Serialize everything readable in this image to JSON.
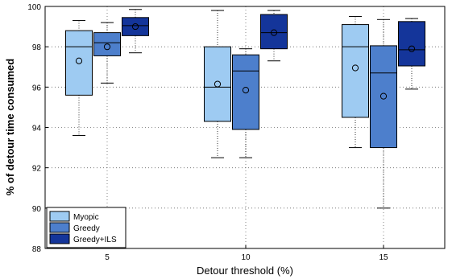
{
  "chart_data": {
    "type": "box",
    "xlabel": "Detour threshold (%)",
    "ylabel": "% of detour time consumed",
    "ylim": [
      88,
      100
    ],
    "yticks": [
      88,
      90,
      92,
      94,
      96,
      98,
      100
    ],
    "categories": [
      "5",
      "10",
      "15"
    ],
    "grid": true,
    "grid_style": "dotted",
    "legend_position": "bottom-left",
    "series": [
      {
        "name": "Myopic",
        "color": "#9ecbf2",
        "boxes": [
          {
            "whisker_low": 93.6,
            "q1": 95.6,
            "median": 98.0,
            "q3": 98.8,
            "whisker_high": 99.3,
            "mean": 97.3
          },
          {
            "whisker_low": 92.5,
            "q1": 94.3,
            "median": 96.0,
            "q3": 98.0,
            "whisker_high": 99.8,
            "mean": 96.15
          },
          {
            "whisker_low": 93.0,
            "q1": 94.5,
            "median": 98.0,
            "q3": 99.1,
            "whisker_high": 99.5,
            "mean": 96.95
          }
        ]
      },
      {
        "name": "Greedy",
        "color": "#4d7fcc",
        "boxes": [
          {
            "whisker_low": 96.2,
            "q1": 97.55,
            "median": 98.2,
            "q3": 98.7,
            "whisker_high": 99.2,
            "mean": 98.0
          },
          {
            "whisker_low": 92.5,
            "q1": 93.9,
            "median": 96.8,
            "q3": 97.6,
            "whisker_high": 97.9,
            "mean": 95.85
          },
          {
            "whisker_low": 90.0,
            "q1": 93.0,
            "median": 96.7,
            "q3": 98.05,
            "whisker_high": 99.35,
            "mean": 95.55
          }
        ]
      },
      {
        "name": "Greedy+ILS",
        "color": "#14359a",
        "boxes": [
          {
            "whisker_low": 97.7,
            "q1": 98.55,
            "median": 99.05,
            "q3": 99.45,
            "whisker_high": 99.85,
            "mean": 99.0
          },
          {
            "whisker_low": 97.3,
            "q1": 97.9,
            "median": 98.7,
            "q3": 99.6,
            "whisker_high": 99.8,
            "mean": 98.7
          },
          {
            "whisker_low": 95.9,
            "q1": 97.05,
            "median": 97.85,
            "q3": 99.25,
            "whisker_high": 99.4,
            "mean": 97.9
          }
        ]
      }
    ]
  }
}
